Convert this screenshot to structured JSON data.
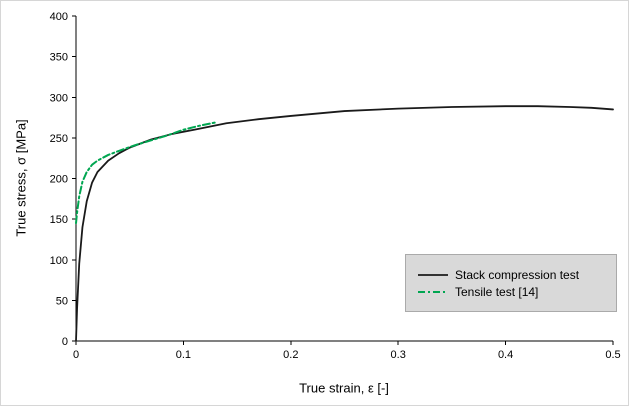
{
  "chart_data": {
    "type": "line",
    "title": "",
    "xlabel": "True strain, ε [-]",
    "ylabel": "True stress, σ [MPa]",
    "xlim": [
      0,
      0.5
    ],
    "ylim": [
      0,
      400
    ],
    "xtick_values": [
      0,
      0.1,
      0.2,
      0.3,
      0.4,
      0.5
    ],
    "xtick_labels": [
      "0",
      "0.1",
      "0.2",
      "0.3",
      "0.4",
      "0.5"
    ],
    "ytick_values": [
      0,
      50,
      100,
      150,
      200,
      250,
      300,
      350,
      400
    ],
    "ytick_labels": [
      "0",
      "50",
      "100",
      "150",
      "200",
      "250",
      "300",
      "350",
      "400"
    ],
    "grid": false,
    "legend_position": "lower right",
    "series": [
      {
        "name": "Stack compression test",
        "color": "#1a1a1a",
        "dash": "",
        "width": 1.8,
        "x": [
          0,
          0.001,
          0.003,
          0.006,
          0.01,
          0.015,
          0.02,
          0.03,
          0.04,
          0.05,
          0.07,
          0.09,
          0.11,
          0.14,
          0.17,
          0.2,
          0.25,
          0.3,
          0.35,
          0.4,
          0.43,
          0.46,
          0.48,
          0.5
        ],
        "y": [
          0,
          40,
          95,
          140,
          172,
          195,
          208,
          222,
          231,
          238,
          248,
          255,
          260,
          268,
          273,
          277,
          283,
          286,
          288,
          289,
          289,
          288,
          287,
          285
        ]
      },
      {
        "name": "Tensile test [14]",
        "color": "#00A651",
        "dash": "7 3 2 3",
        "width": 2,
        "x": [
          0,
          0.001,
          0.003,
          0.006,
          0.01,
          0.015,
          0.02,
          0.03,
          0.04,
          0.055,
          0.07,
          0.085,
          0.1,
          0.115,
          0.13
        ],
        "y": [
          145,
          158,
          178,
          196,
          208,
          217,
          222,
          229,
          234,
          241,
          247,
          253,
          260,
          265,
          269
        ]
      }
    ]
  }
}
